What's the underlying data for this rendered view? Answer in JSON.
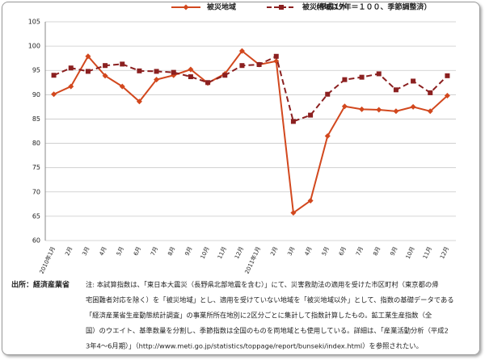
{
  "chart_data": {
    "type": "line",
    "subtitle": "（平成17年＝１００、季節調整済）",
    "categories": [
      "2010年1月",
      "2月",
      "3月",
      "4月",
      "5月",
      "6月",
      "7月",
      "8月",
      "9月",
      "10月",
      "11月",
      "12月",
      "2011年1月",
      "2月",
      "3月",
      "4月",
      "5月",
      "6月",
      "7月",
      "8月",
      "9月",
      "10月",
      "11月",
      "12月"
    ],
    "series": [
      {
        "name": "被災地域",
        "color": "#d2481e",
        "marker": "diamond",
        "dashed": false,
        "values": [
          90.1,
          91.7,
          97.9,
          93.9,
          91.7,
          88.6,
          93.1,
          94.0,
          95.2,
          92.4,
          94.3,
          99.0,
          96.2,
          96.9,
          65.7,
          68.2,
          81.5,
          87.6,
          87.0,
          86.9,
          86.6,
          87.5,
          86.6,
          89.8
        ]
      },
      {
        "name": "被災地域以外",
        "color": "#8b2020",
        "marker": "square",
        "dashed": true,
        "values": [
          94.0,
          95.5,
          94.8,
          96.0,
          96.3,
          94.9,
          94.8,
          94.6,
          93.7,
          92.5,
          94.0,
          96.0,
          96.2,
          97.9,
          84.5,
          85.8,
          90.1,
          93.1,
          93.6,
          94.3,
          91.0,
          92.8,
          90.4,
          93.9
        ]
      }
    ],
    "ylim": [
      60,
      105
    ],
    "yticks": [
      60,
      65,
      70,
      75,
      80,
      85,
      90,
      95,
      100,
      105
    ],
    "grid": true
  },
  "footer": {
    "source": "出所：経済産業省",
    "note": [
      "注: 本試算指数は、「東日本大震災（長野県北部地震を含む）」にて、災害救助法の適用を受けた市区町村（東京都の帰",
      "宅困難者対応を除く）を「被災地域」とし、適用を受けていない地域を「被災地域以外」として、指数の基礎データである",
      "「経済産業省生産動態統計調査」の事業所所在地別に2区分ごとに集計して指数計算したもの。鉱工業生産指数（全",
      "国）のウエイト、基準数量を分割し、季節指数は全国のものを両地域とも使用している。詳細は、「産業活動分析（平成2",
      "3年4～6月期）」（http://www.meti.go.jp/statistics/toppage/report/bunseki/index.html）を参照されたい。"
    ]
  }
}
